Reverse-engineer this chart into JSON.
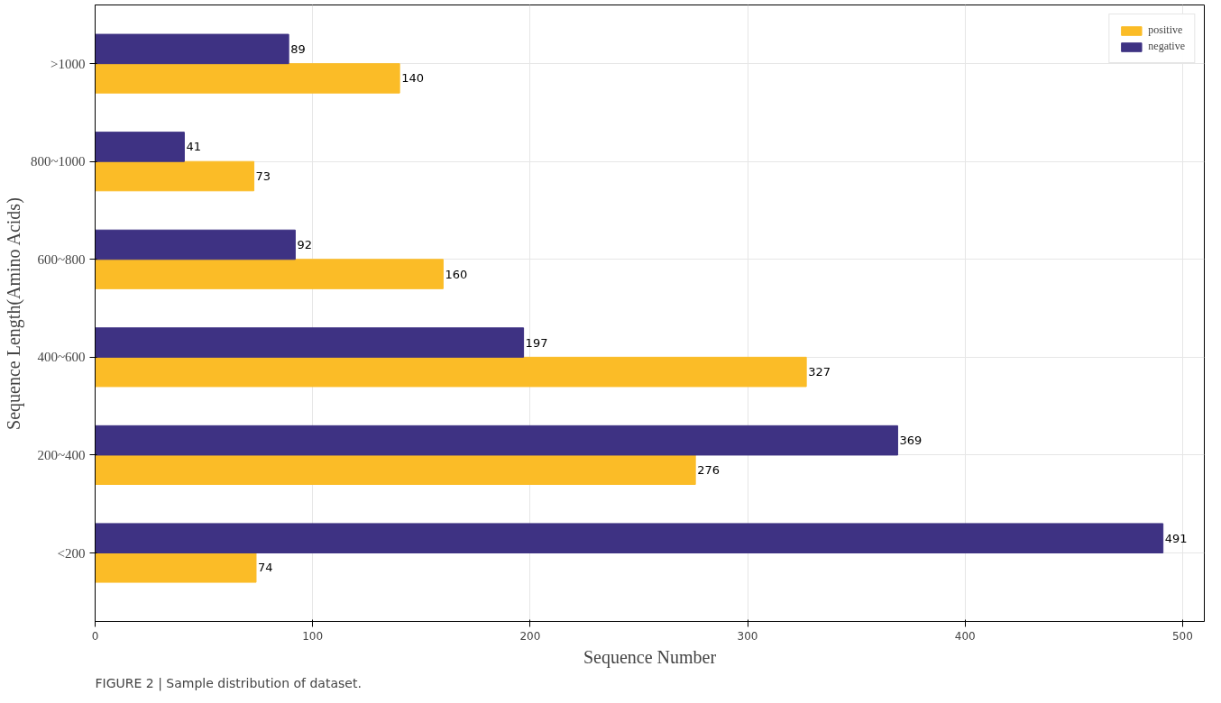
{
  "chart_data": {
    "type": "bar",
    "orientation": "horizontal",
    "xlabel": "Sequence Number",
    "ylabel": "Sequence Length(Amino Acids)",
    "categories": [
      ">1000",
      "800~1000",
      "600~800",
      "400~600",
      "200~400",
      "<200"
    ],
    "series": [
      {
        "name": "positive",
        "color": "#fbbc27",
        "values": [
          140,
          73,
          160,
          327,
          276,
          74
        ]
      },
      {
        "name": "negative",
        "color": "#3e3283",
        "values": [
          89,
          41,
          92,
          197,
          369,
          491
        ]
      }
    ],
    "xlim": [
      0,
      510
    ],
    "xticks": [
      0,
      100,
      200,
      300,
      400,
      500
    ],
    "grid": true,
    "legend": "top right",
    "data_labels": true,
    "annotations": [
      "FIGURE 2 | Sample distribution of dataset."
    ]
  }
}
